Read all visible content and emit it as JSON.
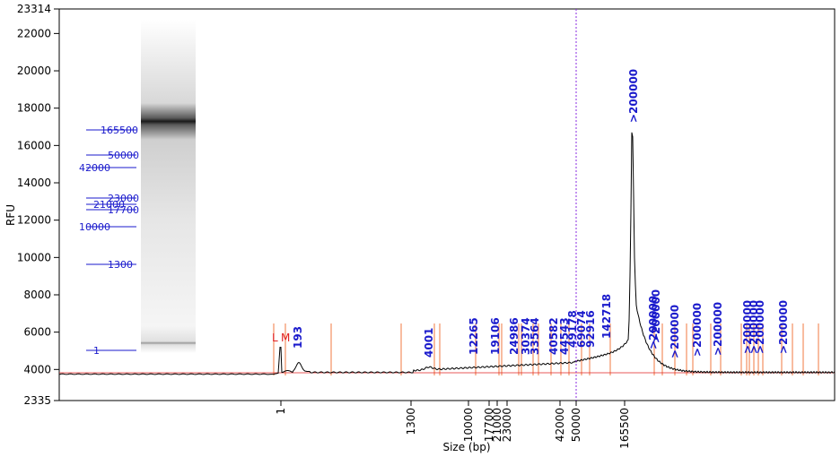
{
  "chart_data": {
    "type": "line",
    "title": "",
    "xlabel": "Size (bp)",
    "ylabel": "RFU",
    "ylim": [
      2335,
      23314
    ],
    "y_ticks": [
      2335,
      4000,
      6000,
      8000,
      10000,
      12000,
      14000,
      16000,
      18000,
      20000,
      22000,
      23314
    ],
    "x_tick_labels": [
      "1",
      "1300",
      "10000",
      "17700",
      "21000",
      "23000",
      "42000",
      "50000",
      "165500"
    ],
    "gel_ladder_labels": [
      "165500",
      "50000",
      "42000",
      "23000",
      "21000",
      "17700",
      "10000",
      "1300",
      "1"
    ],
    "marker_labels": [
      "L",
      "M"
    ],
    "peak_labels": [
      "193",
      "4001",
      "12265",
      "19106",
      "24986",
      "30374",
      "33564",
      "40582",
      "44543",
      "49178",
      "69074",
      "92916",
      "142718",
      ">200000",
      ">200000",
      ">200000",
      ">200000",
      ">200000",
      ">200000",
      ">200000",
      ">200000",
      ">200000",
      ">200000"
    ],
    "main_peak": {
      "label": ">200000",
      "rfu": 16700
    },
    "baseline_rfu": 3750,
    "colors": {
      "trace": "#000000",
      "peak_lines": "#f07840",
      "labels": "#1a1acc",
      "markers": "#e02020",
      "cursor": "#8a2be2"
    }
  }
}
